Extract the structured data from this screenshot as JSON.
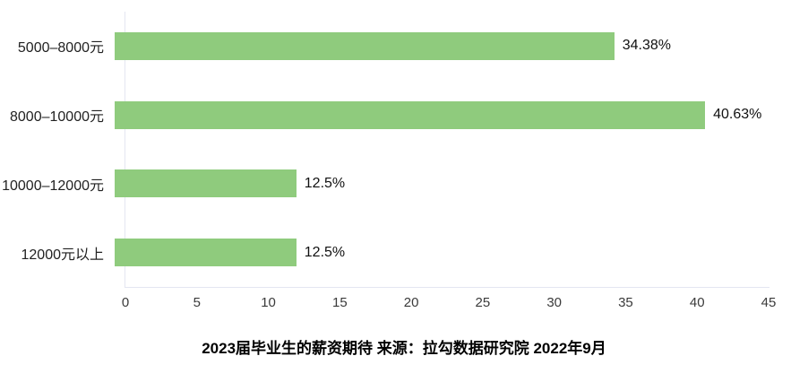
{
  "chart_data": {
    "type": "bar",
    "orientation": "horizontal",
    "categories": [
      "5000–8000元",
      "8000–10000元",
      "10000–12000元",
      "12000元以上"
    ],
    "values": [
      34.38,
      40.63,
      12.5,
      12.5
    ],
    "value_labels": [
      "34.38%",
      "40.63%",
      "12.5%",
      "12.5%"
    ],
    "title": "2023届毕业生的薪资期待 来源：拉勾数据研究院 2022年9月",
    "xlabel": "",
    "ylabel": "",
    "xlim": [
      0,
      45
    ],
    "x_ticks": [
      0,
      5,
      10,
      15,
      20,
      25,
      30,
      35,
      40,
      45
    ],
    "grid": false,
    "legend": false,
    "bar_color": "#8fcb7d",
    "axis_line_color": "#e4e6f1",
    "category_label_color": "#222222",
    "value_label_color": "#111111",
    "tick_label_color": "#3a3a3a"
  }
}
